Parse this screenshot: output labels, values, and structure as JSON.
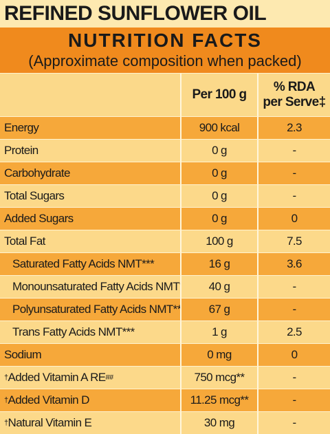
{
  "header": {
    "product": "REFINED SUNFLOWER OIL",
    "title": "NUTRITION FACTS",
    "subtitle": "(Approximate composition when packed)"
  },
  "table": {
    "columns": [
      "Per 100 g",
      "% RDA",
      "per Serve‡"
    ],
    "rows": [
      {
        "nutrient": "Energy",
        "per100g": "900 kcal",
        "rda": "2.3"
      },
      {
        "nutrient": "Protein",
        "per100g": "0 g",
        "rda": "-"
      },
      {
        "nutrient": "Carbohydrate",
        "per100g": "0 g",
        "rda": "-"
      },
      {
        "nutrient": "Total Sugars",
        "per100g": "0 g",
        "rda": "-"
      },
      {
        "nutrient": "Added Sugars",
        "per100g": "0 g",
        "rda": "0"
      },
      {
        "nutrient": "Total Fat",
        "per100g": "100 g",
        "rda": "7.5"
      },
      {
        "nutrient": "Saturated Fatty Acids NMT***",
        "per100g": "16 g",
        "rda": "3.6",
        "indent": true
      },
      {
        "nutrient": "Monounsaturated Fatty Acids NMT***",
        "per100g": "40 g",
        "rda": "-",
        "indent": true
      },
      {
        "nutrient": "Polyunsaturated Fatty Acids NMT***",
        "per100g": "67 g",
        "rda": "-",
        "indent": true
      },
      {
        "nutrient": "Trans Fatty Acids NMT***",
        "per100g": "1 g",
        "rda": "2.5",
        "indent": true
      },
      {
        "nutrient": "Sodium",
        "per100g": "0 mg",
        "rda": "0"
      },
      {
        "mark": "†",
        "nutrient": "Added Vitamin A RE",
        "sup": "##",
        "per100g": "750 mcg**",
        "rda": "-"
      },
      {
        "mark": "†",
        "nutrient": "Added Vitamin D",
        "per100g": "11.25 mcg**",
        "rda": "-"
      },
      {
        "mark": "†",
        "nutrient": "Natural Vitamin E",
        "per100g": "30 mg",
        "rda": "-"
      }
    ]
  }
}
